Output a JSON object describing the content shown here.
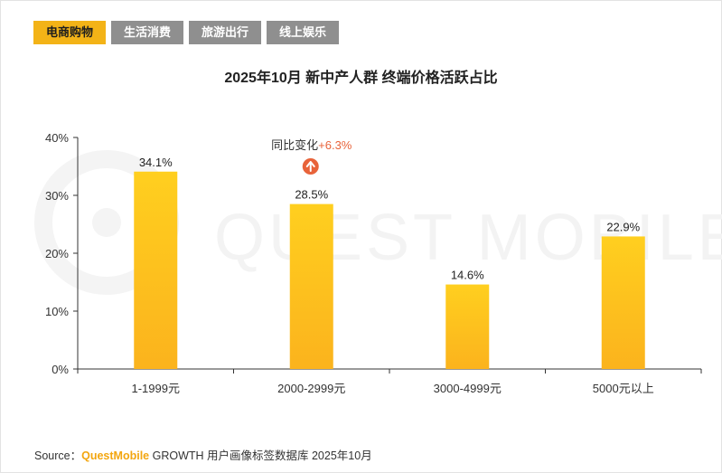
{
  "tabs": [
    {
      "label": "电商购物",
      "active": true
    },
    {
      "label": "生活消费",
      "active": false
    },
    {
      "label": "旅游出行",
      "active": false
    },
    {
      "label": "线上娱乐",
      "active": false
    }
  ],
  "watermark": "QUEST MOBILE",
  "source": {
    "prefix": "Source：",
    "brand": "QuestMobile",
    "rest": " GROWTH 用户画像标签数据库 2025年10月"
  },
  "colors": {
    "active_tab": "#f3b317",
    "inactive_tab": "#8f8f8f",
    "bar_top": "#ffcf1f",
    "bar_bottom": "#fbb31d",
    "increase_badge": "#e8633a",
    "increase_text": "#e8633a"
  },
  "chart_data": {
    "type": "bar",
    "title": "2025年10月 新中产人群 终端价格活跃占比",
    "categories": [
      "1-1999元",
      "2000-2999元",
      "3000-4999元",
      "5000元以上"
    ],
    "values": [
      34.1,
      28.5,
      14.6,
      22.9
    ],
    "value_labels": [
      "34.1%",
      "28.5%",
      "14.6%",
      "22.9%"
    ],
    "ylim": [
      0,
      40
    ],
    "yticks": [
      0,
      10,
      20,
      30,
      40
    ],
    "ytick_labels": [
      "0%",
      "10%",
      "20%",
      "30%",
      "40%"
    ],
    "xlabel": "",
    "ylabel": "",
    "grid": false,
    "annotation": {
      "category": "2000-2999元",
      "label": "同比变化",
      "value": "+6.3%",
      "direction": "up-arrow-icon"
    }
  }
}
